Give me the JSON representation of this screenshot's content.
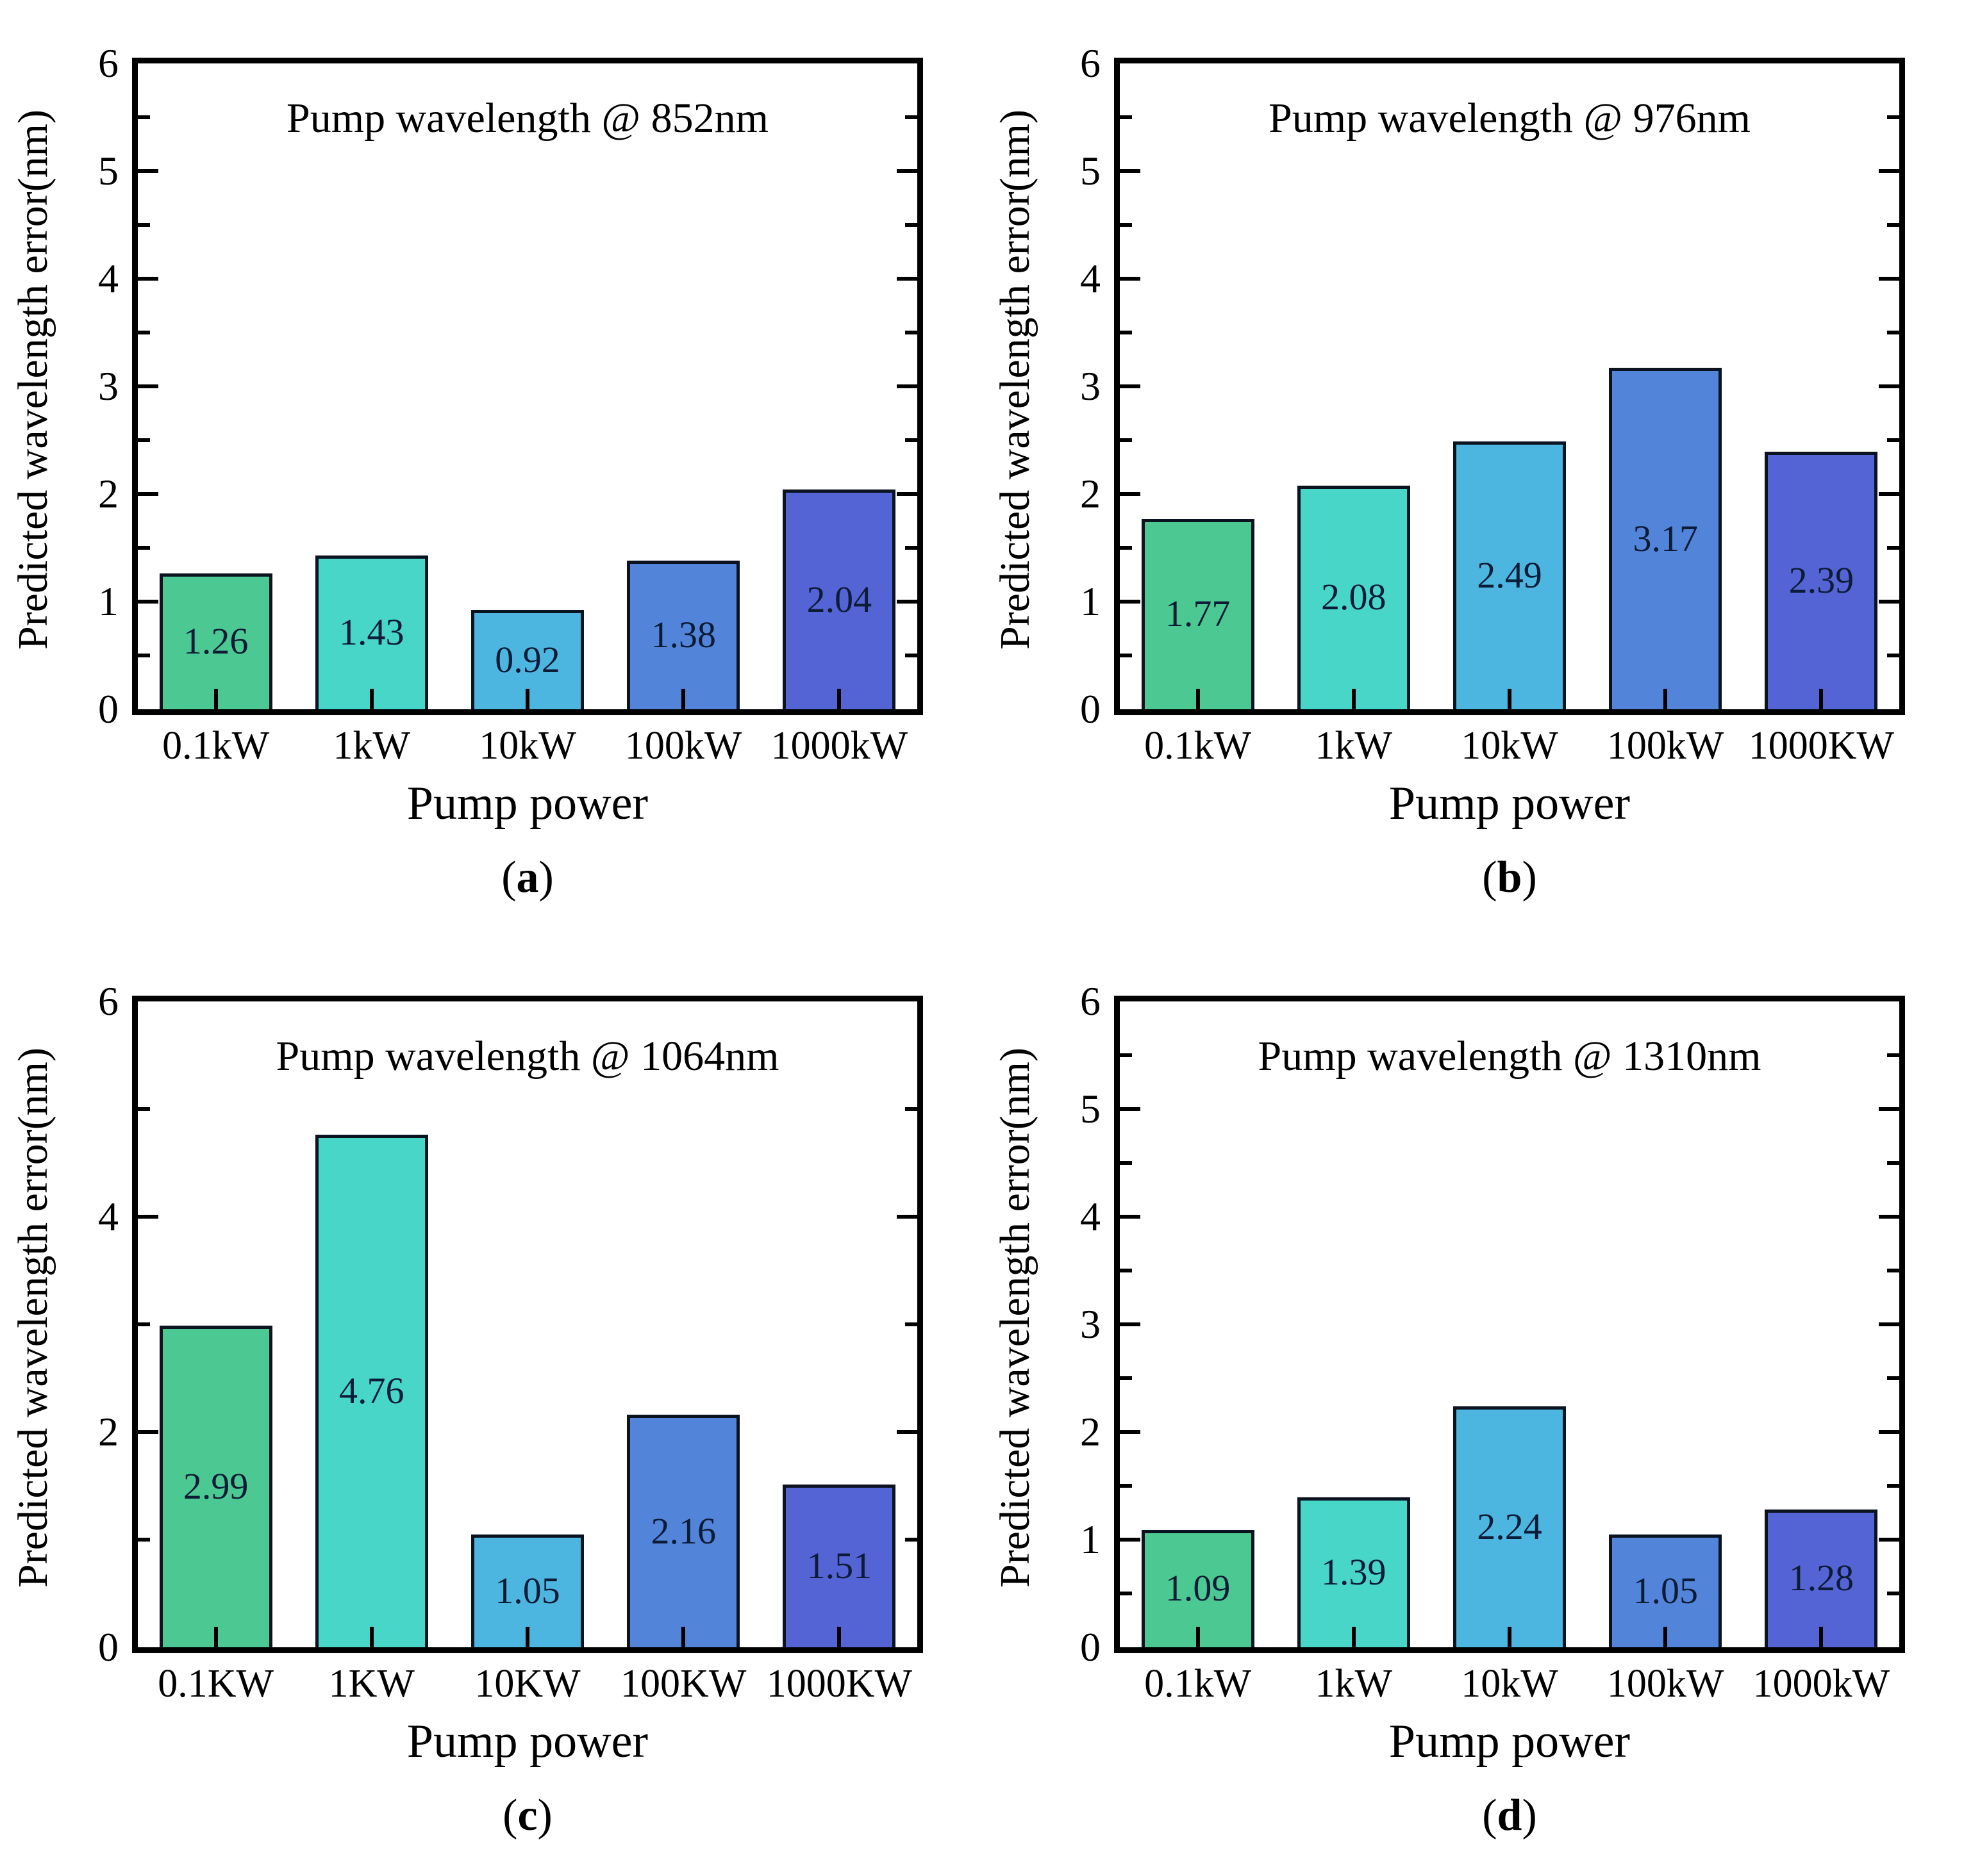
{
  "figure_style": {
    "bar_colors": [
      "#4cc993",
      "#47d6c8",
      "#4db6e0",
      "#5285da",
      "#5564d4"
    ],
    "bar_border_color": "#0b1220",
    "value_label_color": "#0d1c36",
    "axis_color": "#000000"
  },
  "chart_data": [
    {
      "type": "bar",
      "panel": "a",
      "panel_label": {
        "open": "(",
        "letter": "a",
        "close": ")"
      },
      "title": "Pump wavelength @ 852nm",
      "xlabel": "Pump power",
      "ylabel": "Predicted wavelength error(nm)",
      "categories": [
        "0.1kW",
        "1kW",
        "10kW",
        "100kW",
        "1000kW"
      ],
      "values": [
        1.26,
        1.43,
        0.92,
        1.38,
        2.04
      ],
      "bar_labels": [
        "1.26",
        "1.43",
        "0.92",
        "1.38",
        "2.04"
      ],
      "ylim": [
        0,
        6
      ],
      "yticks": [
        0,
        1,
        2,
        3,
        4,
        5,
        6
      ],
      "yticks_minor": [
        0.5,
        1.5,
        2.5,
        3.5,
        4.5,
        5.5
      ],
      "grid": false,
      "legend": null
    },
    {
      "type": "bar",
      "panel": "b",
      "panel_label": {
        "open": "(",
        "letter": "b",
        "close": ")"
      },
      "title": "Pump wavelength @ 976nm",
      "xlabel": "Pump power",
      "ylabel": "Predicted wavelength error(nm)",
      "categories": [
        "0.1kW",
        "1kW",
        "10kW",
        "100kW",
        "1000KW"
      ],
      "values": [
        1.77,
        2.08,
        2.49,
        3.17,
        2.39
      ],
      "bar_labels": [
        "1.77",
        "2.08",
        "2.49",
        "3.17",
        "2.39"
      ],
      "ylim": [
        0,
        6
      ],
      "yticks": [
        0,
        1,
        2,
        3,
        4,
        5,
        6
      ],
      "yticks_minor": [
        0.5,
        1.5,
        2.5,
        3.5,
        4.5,
        5.5
      ],
      "grid": false,
      "legend": null
    },
    {
      "type": "bar",
      "panel": "c",
      "panel_label": {
        "open": "(",
        "letter": "c",
        "close": ")"
      },
      "title": "Pump wavelength @ 1064nm",
      "xlabel": "Pump power",
      "ylabel": "Predicted wavelength error(nm)",
      "categories": [
        "0.1KW",
        "1KW",
        "10KW",
        "100KW",
        "1000KW"
      ],
      "values": [
        2.99,
        4.76,
        1.05,
        2.16,
        1.51
      ],
      "bar_labels": [
        "2.99",
        "4.76",
        "1.05",
        "2.16",
        "1.51"
      ],
      "ylim": [
        0,
        6
      ],
      "yticks": [
        0,
        2,
        4,
        6
      ],
      "yticks_minor": [
        1,
        3,
        5
      ],
      "grid": false,
      "legend": null
    },
    {
      "type": "bar",
      "panel": "d",
      "panel_label": {
        "open": "(",
        "letter": "d",
        "close": ")"
      },
      "title": "Pump wavelength @ 1310nm",
      "xlabel": "Pump power",
      "ylabel": "Predicted wavelength error(nm)",
      "categories": [
        "0.1kW",
        "1kW",
        "10kW",
        "100kW",
        "1000kW"
      ],
      "values": [
        1.09,
        1.39,
        2.24,
        1.05,
        1.28
      ],
      "bar_labels": [
        "1.09",
        "1.39",
        "2.24",
        "1.05",
        "1.28"
      ],
      "ylim": [
        0,
        6
      ],
      "yticks": [
        0,
        1,
        2,
        3,
        4,
        5,
        6
      ],
      "yticks_minor": [
        0.5,
        1.5,
        2.5,
        3.5,
        4.5,
        5.5
      ],
      "grid": false,
      "legend": null
    }
  ]
}
